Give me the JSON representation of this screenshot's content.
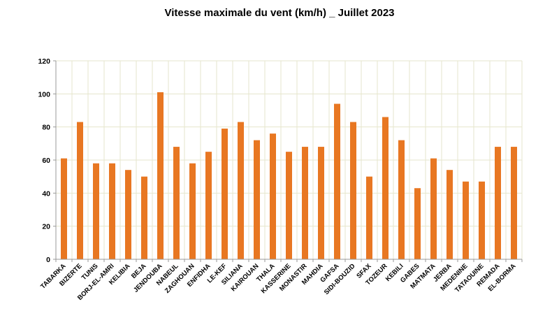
{
  "chart_data": {
    "type": "bar",
    "title": "Vitesse maximale du vent (km/h) _ Juillet 2023",
    "xlabel": "",
    "ylabel": "",
    "ylim": [
      0,
      120
    ],
    "yticks": [
      0,
      20,
      40,
      60,
      80,
      100,
      120
    ],
    "grid": true,
    "bar_color": "#E87722",
    "grid_color": "#e6e6cc",
    "axis_color": "#999999",
    "categories": [
      "TABARKA",
      "BIZERTE",
      "TUNIS",
      "BORJ-EL-AMRI",
      "KELIBIA",
      "BEJA",
      "JENDOUBA",
      "NABEUL",
      "ZAGHOUAN",
      "ENFIDHA",
      "LE-KEF",
      "SILIANA",
      "KAIROUAN",
      "THALA",
      "KASSERINE",
      "MONASTIR",
      "MAHDIA",
      "GAFSA",
      "SIDI-BOUZID",
      "SFAX",
      "TOZEUR",
      "KEBILI",
      "GABES",
      "MATMATA",
      "JERBA",
      "MEDENINE",
      "TATAOUINE",
      "REMADA",
      "EL-BORMA"
    ],
    "values": [
      61,
      83,
      58,
      58,
      54,
      50,
      101,
      68,
      58,
      65,
      79,
      83,
      72,
      76,
      65,
      68,
      68,
      94,
      83,
      50,
      86,
      72,
      43,
      61,
      54,
      47,
      47,
      68,
      68
    ]
  }
}
